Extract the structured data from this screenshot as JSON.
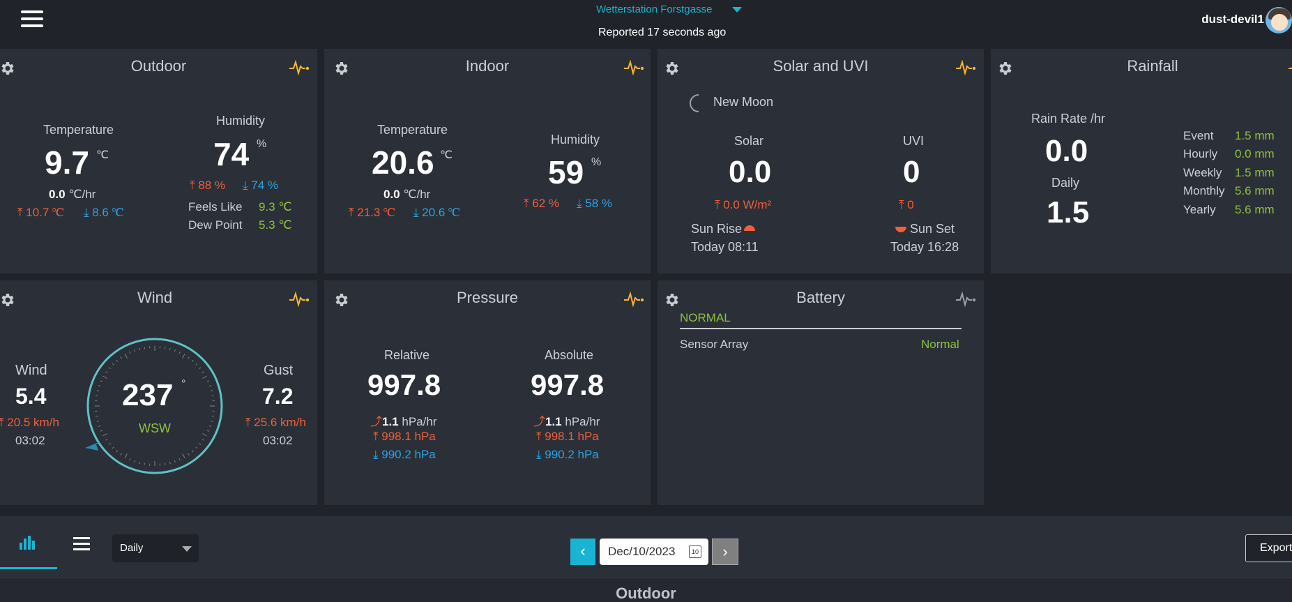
{
  "header": {
    "station_name": "Wetterstation Forstgasse",
    "reported": "Reported 17 seconds ago",
    "username": "dust-devil1"
  },
  "outdoor": {
    "title": "Outdoor",
    "temp_label": "Temperature",
    "temp_value": "9.7",
    "temp_unit": "℃",
    "temp_rate_value": "0.0",
    "temp_rate_unit": "℃/hr",
    "temp_high": "10.7 ℃",
    "temp_low": "8.6 ℃",
    "hum_label": "Humidity",
    "hum_value": "74",
    "hum_unit": "%",
    "hum_high": "88 %",
    "hum_low": "74 %",
    "feels_label": "Feels Like",
    "feels_value": "9.3 ℃",
    "dew_label": "Dew Point",
    "dew_value": "5.3 ℃"
  },
  "indoor": {
    "title": "Indoor",
    "temp_label": "Temperature",
    "temp_value": "20.6",
    "temp_unit": "℃",
    "temp_rate_value": "0.0",
    "temp_rate_unit": "℃/hr",
    "temp_high": "21.3 ℃",
    "temp_low": "20.6 ℃",
    "hum_label": "Humidity",
    "hum_value": "59",
    "hum_unit": "%",
    "hum_high": "62 %",
    "hum_low": "58 %"
  },
  "solar": {
    "title": "Solar and UVI",
    "moon_phase": "New Moon",
    "solar_label": "Solar",
    "solar_value": "0.0",
    "solar_high": "0.0 W/m²",
    "uvi_label": "UVI",
    "uvi_value": "0",
    "uvi_high": "0",
    "sunrise_label": "Sun Rise",
    "sunrise_time": "Today 08:11",
    "sunset_label": "Sun Set",
    "sunset_time": "Today 16:28"
  },
  "rainfall": {
    "title": "Rainfall",
    "rate_label": "Rain Rate /hr",
    "rate_value": "0.0",
    "daily_label": "Daily",
    "daily_value": "1.5",
    "stats": [
      {
        "label": "Event",
        "value": "1.5 mm"
      },
      {
        "label": "Hourly",
        "value": "0.0 mm"
      },
      {
        "label": "Weekly",
        "value": "1.5 mm"
      },
      {
        "label": "Monthly",
        "value": "5.6 mm"
      },
      {
        "label": "Yearly",
        "value": "5.6 mm"
      }
    ]
  },
  "wind": {
    "title": "Wind",
    "wind_label": "Wind",
    "wind_value": "5.4",
    "wind_high": "20.5 km/h",
    "wind_time": "03:02",
    "direction_deg": "237",
    "direction_unit": "°",
    "direction_name": "WSW",
    "gust_label": "Gust",
    "gust_value": "7.2",
    "gust_high": "25.6 km/h",
    "gust_time": "03:02"
  },
  "pressure": {
    "title": "Pressure",
    "relative": {
      "label": "Relative",
      "value": "997.8",
      "rate_value": "1.1",
      "rate_unit": "hPa/hr",
      "high": "998.1 hPa",
      "low": "990.2 hPa"
    },
    "absolute": {
      "label": "Absolute",
      "value": "997.8",
      "rate_value": "1.1",
      "rate_unit": "hPa/hr",
      "high": "998.1 hPa",
      "low": "990.2 hPa"
    }
  },
  "battery": {
    "title": "Battery",
    "status": "NORMAL",
    "sensor_label": "Sensor Array",
    "sensor_value": "Normal"
  },
  "toolbar": {
    "period": "Daily",
    "date": "Dec/10/2023",
    "calendar_day": "10",
    "prev": "‹",
    "next": "›",
    "export_label": "Export"
  },
  "chart_section_title": "Outdoor",
  "colors": {
    "accent": "#1ab4d3",
    "high": "#f0603a",
    "low": "#2ba4e6",
    "ok": "#8fc23e",
    "pulse": "#f5b82e"
  }
}
